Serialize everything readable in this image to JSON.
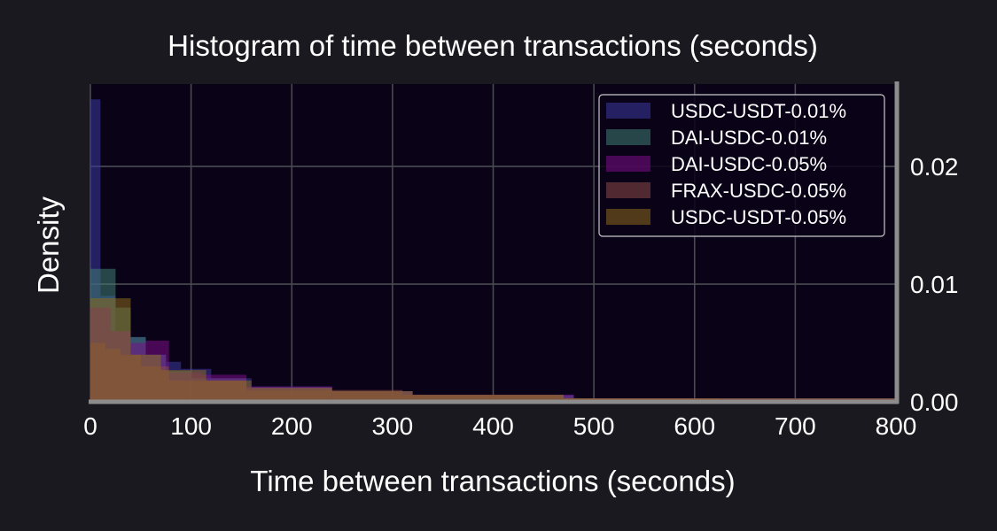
{
  "chart_data": {
    "type": "histogram",
    "title": "Histogram of time between transactions (seconds)",
    "xlabel": "Time between transactions (seconds)",
    "ylabel": "Density",
    "xlim": [
      0,
      800
    ],
    "ylim": [
      0,
      0.027
    ],
    "x_ticks": [
      "0",
      "100",
      "200",
      "300",
      "400",
      "500",
      "600",
      "700",
      "800"
    ],
    "y_ticks": [
      "0.00",
      "0.01",
      "0.02"
    ],
    "y_axis_side": "right",
    "grid": true,
    "legend_position": "top-right",
    "series": [
      {
        "name": "USDC-USDT-0.01%",
        "color": "#3b3ba0",
        "bins": [
          {
            "x0": 0,
            "x1": 10,
            "density": 0.0257
          },
          {
            "x0": 10,
            "x1": 25,
            "density": 0.009
          },
          {
            "x0": 25,
            "x1": 40,
            "density": 0.006
          },
          {
            "x0": 40,
            "x1": 55,
            "density": 0.0055
          },
          {
            "x0": 55,
            "x1": 75,
            "density": 0.004
          },
          {
            "x0": 75,
            "x1": 90,
            "density": 0.0034
          },
          {
            "x0": 90,
            "x1": 120,
            "density": 0.0028
          },
          {
            "x0": 120,
            "x1": 160,
            "density": 0.002
          },
          {
            "x0": 160,
            "x1": 240,
            "density": 0.0013
          },
          {
            "x0": 240,
            "x1": 320,
            "density": 0.0009
          },
          {
            "x0": 320,
            "x1": 480,
            "density": 0.0006
          },
          {
            "x0": 480,
            "x1": 800,
            "density": 0.0003
          }
        ]
      },
      {
        "name": "DAI-USDC-0.01%",
        "color": "#3f7f72",
        "bins": [
          {
            "x0": 0,
            "x1": 25,
            "density": 0.0113
          },
          {
            "x0": 25,
            "x1": 40,
            "density": 0.008
          },
          {
            "x0": 40,
            "x1": 55,
            "density": 0.0055
          },
          {
            "x0": 55,
            "x1": 75,
            "density": 0.004
          },
          {
            "x0": 75,
            "x1": 100,
            "density": 0.0026
          },
          {
            "x0": 100,
            "x1": 155,
            "density": 0.002
          },
          {
            "x0": 155,
            "x1": 240,
            "density": 0.0012
          },
          {
            "x0": 240,
            "x1": 320,
            "density": 0.0009
          },
          {
            "x0": 320,
            "x1": 480,
            "density": 0.0005
          },
          {
            "x0": 480,
            "x1": 800,
            "density": 0.0003
          }
        ]
      },
      {
        "name": "DAI-USDC-0.05%",
        "color": "#7c0e88",
        "bins": [
          {
            "x0": 0,
            "x1": 20,
            "density": 0.008
          },
          {
            "x0": 20,
            "x1": 40,
            "density": 0.006
          },
          {
            "x0": 40,
            "x1": 55,
            "density": 0.005
          },
          {
            "x0": 55,
            "x1": 78,
            "density": 0.0052
          },
          {
            "x0": 78,
            "x1": 110,
            "density": 0.0025
          },
          {
            "x0": 110,
            "x1": 155,
            "density": 0.0023
          },
          {
            "x0": 155,
            "x1": 240,
            "density": 0.0013
          },
          {
            "x0": 240,
            "x1": 320,
            "density": 0.0009
          },
          {
            "x0": 320,
            "x1": 480,
            "density": 0.0006
          },
          {
            "x0": 480,
            "x1": 800,
            "density": 0.0003
          }
        ]
      },
      {
        "name": "FRAX-USDC-0.05%",
        "color": "#8c4a46",
        "bins": [
          {
            "x0": 0,
            "x1": 15,
            "density": 0.005
          },
          {
            "x0": 15,
            "x1": 30,
            "density": 0.0045
          },
          {
            "x0": 30,
            "x1": 50,
            "density": 0.004
          },
          {
            "x0": 50,
            "x1": 78,
            "density": 0.003
          },
          {
            "x0": 78,
            "x1": 155,
            "density": 0.0018
          },
          {
            "x0": 155,
            "x1": 310,
            "density": 0.001
          },
          {
            "x0": 310,
            "x1": 470,
            "density": 0.0006
          },
          {
            "x0": 470,
            "x1": 625,
            "density": 0.0003
          },
          {
            "x0": 625,
            "x1": 800,
            "density": 0.0002
          }
        ]
      },
      {
        "name": "USDC-USDT-0.05%",
        "color": "#8a6a1e",
        "bins": [
          {
            "x0": 0,
            "x1": 15,
            "density": 0.0088
          },
          {
            "x0": 15,
            "x1": 40,
            "density": 0.0088
          },
          {
            "x0": 40,
            "x1": 70,
            "density": 0.004
          },
          {
            "x0": 70,
            "x1": 115,
            "density": 0.0027
          },
          {
            "x0": 115,
            "x1": 160,
            "density": 0.0018
          },
          {
            "x0": 160,
            "x1": 240,
            "density": 0.0012
          },
          {
            "x0": 240,
            "x1": 320,
            "density": 0.0009
          },
          {
            "x0": 320,
            "x1": 470,
            "density": 0.0006
          },
          {
            "x0": 470,
            "x1": 800,
            "density": 0.0003
          }
        ]
      }
    ]
  }
}
